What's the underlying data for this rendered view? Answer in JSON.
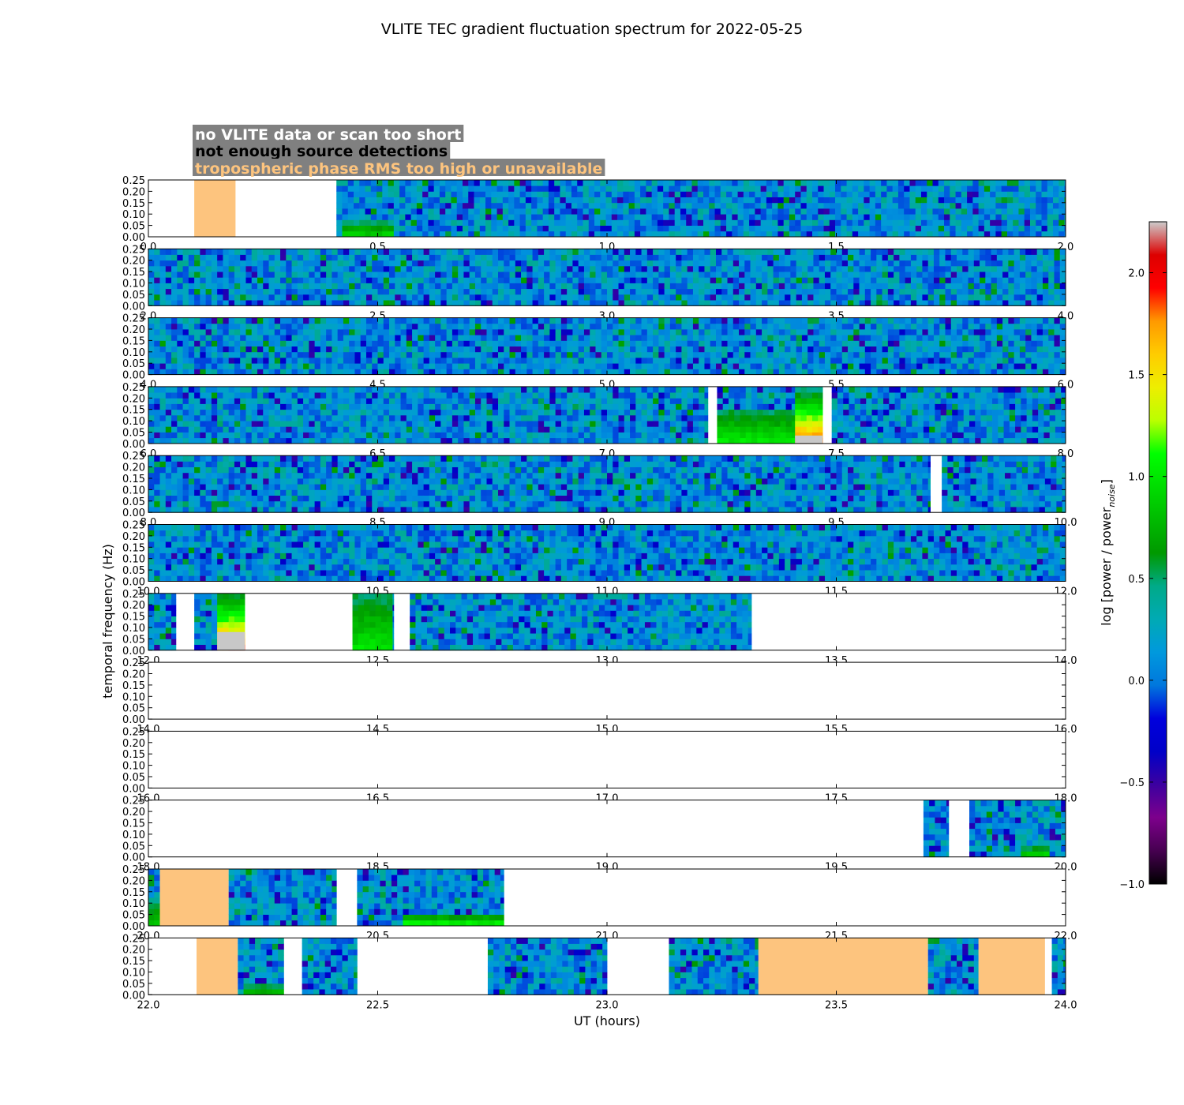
{
  "title": "VLITE TEC gradient fluctuation spectrum for 2022-05-25",
  "legend": {
    "entries": [
      {
        "label": "no VLITE data or scan too short",
        "color": "#ffffff",
        "background": "#808080"
      },
      {
        "label": "not enough source detections",
        "color": "#000000",
        "background": "#808080"
      },
      {
        "label": "tropospheric phase RMS too high or unavailable",
        "color": "#fdc47e",
        "background": "#808080"
      }
    ]
  },
  "colors": {
    "tropo_flag": "#fdc47e",
    "no_detection_flag": "#c8c8c8",
    "no_data": "#ffffff"
  },
  "chart_data": {
    "type": "heatmap",
    "title": "VLITE TEC gradient fluctuation spectrum for 2022-05-25",
    "xlabel": "UT (hours)",
    "ylabel": "temporal frequency (Hz)",
    "colorbar_label": "log [power / power",
    "colorbar_label_sub": "noise",
    "colorbar_label_end": "]",
    "colorbar": {
      "range": [
        -1.0,
        2.25
      ],
      "ticks": [
        -1.0,
        -0.5,
        0.0,
        0.5,
        1.0,
        1.5,
        2.0
      ],
      "tick_labels": [
        "−1.0",
        "−0.5",
        "0.0",
        "0.5",
        "1.0",
        "1.5",
        "2.0"
      ],
      "colormap": "nipy_spectral"
    },
    "y_ticks": [
      "0.00",
      "0.05",
      "0.10",
      "0.15",
      "0.20",
      "0.25"
    ],
    "ylim": [
      0,
      0.25
    ],
    "panels": [
      {
        "x_range": [
          0,
          2
        ],
        "x_ticks": [
          "0.0",
          "0.5",
          "1.0",
          "1.5",
          "2.0"
        ],
        "segments": [
          {
            "kind": "tropo",
            "start": 0.1,
            "end": 0.19
          },
          {
            "kind": "data",
            "start": 0.41,
            "end": 2.0,
            "events": [
              {
                "start": 0.42,
                "end": 0.53,
                "fmax": 0.05,
                "peak": 0.95
              }
            ]
          }
        ]
      },
      {
        "x_range": [
          2,
          4
        ],
        "x_ticks": [
          "2.0",
          "2.5",
          "3.0",
          "3.5",
          "4.0"
        ],
        "segments": [
          {
            "kind": "data",
            "start": 2.0,
            "end": 4.0
          }
        ]
      },
      {
        "x_range": [
          4,
          6
        ],
        "x_ticks": [
          "4.0",
          "4.5",
          "5.0",
          "5.5",
          "6.0"
        ],
        "segments": [
          {
            "kind": "data",
            "start": 4.0,
            "end": 6.0
          }
        ]
      },
      {
        "x_range": [
          6,
          8
        ],
        "x_ticks": [
          "6.0",
          "6.5",
          "7.0",
          "7.5",
          "8.0"
        ],
        "segments": [
          {
            "kind": "data",
            "start": 6.0,
            "end": 7.22
          },
          {
            "kind": "data",
            "start": 7.24,
            "end": 7.41,
            "events": [
              {
                "start": 7.24,
                "end": 7.41,
                "fmax": 0.14,
                "peak": 1.05
              }
            ]
          },
          {
            "kind": "data",
            "start": 7.41,
            "end": 7.47,
            "events": [
              {
                "start": 7.41,
                "end": 7.47,
                "fmax": 0.22,
                "peak": 1.9
              }
            ]
          },
          {
            "kind": "noDetect",
            "start": 7.41,
            "end": 7.47,
            "fmax": 0.035
          },
          {
            "kind": "data",
            "start": 7.49,
            "end": 8.0
          }
        ]
      },
      {
        "x_range": [
          8,
          10
        ],
        "x_ticks": [
          "8.0",
          "8.5",
          "9.0",
          "9.5",
          "10.0"
        ],
        "segments": [
          {
            "kind": "data",
            "start": 8.0,
            "end": 9.705
          },
          {
            "kind": "data",
            "start": 9.73,
            "end": 10.0
          }
        ]
      },
      {
        "x_range": [
          10,
          12
        ],
        "x_ticks": [
          "10.0",
          "10.5",
          "11.0",
          "11.5",
          "12.0"
        ],
        "segments": [
          {
            "kind": "data",
            "start": 10.0,
            "end": 12.0
          }
        ]
      },
      {
        "x_range": [
          12,
          14
        ],
        "x_ticks": [
          "12.0",
          "12.5",
          "13.0",
          "13.5",
          "14.0"
        ],
        "segments": [
          {
            "kind": "data",
            "start": 12.0,
            "end": 12.06
          },
          {
            "kind": "data",
            "start": 12.1,
            "end": 12.21,
            "events": [
              {
                "start": 12.15,
                "end": 12.21,
                "fmax": 0.25,
                "peak": 1.9
              }
            ]
          },
          {
            "kind": "noDetect",
            "start": 12.15,
            "end": 12.21,
            "fmax": 0.08
          },
          {
            "kind": "data",
            "start": 12.445,
            "end": 12.535,
            "events": [
              {
                "start": 12.445,
                "end": 12.535,
                "fmax": 0.25,
                "peak": 1.0
              }
            ]
          },
          {
            "kind": "data",
            "start": 12.57,
            "end": 13.315
          }
        ]
      },
      {
        "x_range": [
          14,
          16
        ],
        "x_ticks": [
          "14.0",
          "14.5",
          "15.0",
          "15.5",
          "16.0"
        ],
        "segments": []
      },
      {
        "x_range": [
          16,
          18
        ],
        "x_ticks": [
          "16.0",
          "16.5",
          "17.0",
          "17.5",
          "18.0"
        ],
        "segments": []
      },
      {
        "x_range": [
          18,
          20
        ],
        "x_ticks": [
          "18.0",
          "18.5",
          "19.0",
          "19.5",
          "20.0"
        ],
        "segments": [
          {
            "kind": "data",
            "start": 19.69,
            "end": 19.745
          },
          {
            "kind": "data",
            "start": 19.79,
            "end": 20.0,
            "events": [
              {
                "start": 19.9,
                "end": 19.96,
                "fmax": 0.03,
                "peak": 1.0
              }
            ]
          }
        ]
      },
      {
        "x_range": [
          20,
          22
        ],
        "x_ticks": [
          "20.0",
          "20.5",
          "21.0",
          "21.5",
          "22.0"
        ],
        "segments": [
          {
            "kind": "data",
            "start": 20.0,
            "end": 20.025,
            "events": [
              {
                "start": 20.0,
                "end": 20.025,
                "fmax": 0.1,
                "peak": 0.9
              }
            ]
          },
          {
            "kind": "tropo",
            "start": 20.025,
            "end": 20.175
          },
          {
            "kind": "data",
            "start": 20.175,
            "end": 20.41
          },
          {
            "kind": "data",
            "start": 20.455,
            "end": 20.775,
            "events": [
              {
                "start": 20.555,
                "end": 20.775,
                "fmax": 0.035,
                "peak": 1.2
              }
            ]
          }
        ]
      },
      {
        "x_range": [
          22,
          24
        ],
        "x_ticks": [
          "22.0",
          "22.5",
          "23.0",
          "23.5",
          "24.0"
        ],
        "segments": [
          {
            "kind": "tropo",
            "start": 22.105,
            "end": 22.195
          },
          {
            "kind": "data",
            "start": 22.195,
            "end": 22.295,
            "events": [
              {
                "start": 22.21,
                "end": 22.29,
                "fmax": 0.03,
                "peak": 0.85
              }
            ]
          },
          {
            "kind": "data",
            "start": 22.335,
            "end": 22.455
          },
          {
            "kind": "data",
            "start": 22.74,
            "end": 23.0
          },
          {
            "kind": "data",
            "start": 23.135,
            "end": 23.33
          },
          {
            "kind": "tropo",
            "start": 23.33,
            "end": 23.7
          },
          {
            "kind": "data",
            "start": 23.7,
            "end": 23.81
          },
          {
            "kind": "tropo",
            "start": 23.81,
            "end": 23.955
          },
          {
            "kind": "data",
            "start": 23.97,
            "end": 24.0
          }
        ]
      }
    ]
  }
}
